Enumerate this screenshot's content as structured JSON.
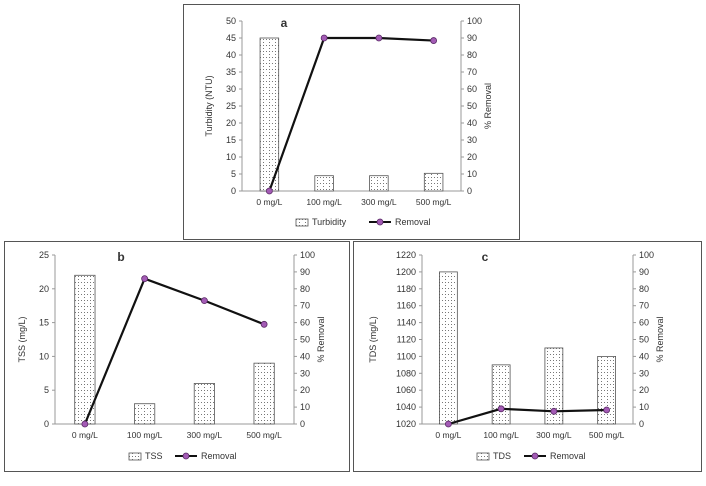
{
  "chart_data": [
    {
      "type": "bar",
      "panel_label": "a",
      "categories": [
        "0 mg/L",
        "100 mg/L",
        "300 mg/L",
        "500 mg/L"
      ],
      "series": [
        {
          "name": "Turbidity",
          "type": "bar",
          "axis": "left",
          "values": [
            45,
            4.5,
            4.5,
            5.2
          ]
        },
        {
          "name": "Removal",
          "type": "line",
          "axis": "right",
          "values": [
            0,
            90,
            90,
            88.5
          ]
        }
      ],
      "ylabel": "Turbidity (NTU)",
      "y2label": "% Removal",
      "ylim": [
        0,
        50
      ],
      "yticks": [
        0,
        5,
        10,
        15,
        20,
        25,
        30,
        35,
        40,
        45,
        50
      ],
      "y2lim": [
        0,
        100
      ],
      "y2ticks": [
        0,
        10,
        20,
        30,
        40,
        50,
        60,
        70,
        80,
        90,
        100
      ],
      "legend": "bottom",
      "grid": false,
      "colors": {
        "bar_fill": "#ffffff",
        "bar_stroke": "#555555",
        "line": "#111111",
        "marker": "#a35bb5"
      }
    },
    {
      "type": "bar",
      "panel_label": "b",
      "categories": [
        "0 mg/L",
        "100 mg/L",
        "300 mg/L",
        "500 mg/L"
      ],
      "series": [
        {
          "name": "TSS",
          "type": "bar",
          "axis": "left",
          "values": [
            22,
            3,
            6,
            9
          ]
        },
        {
          "name": "Removal",
          "type": "line",
          "axis": "right",
          "values": [
            0,
            86,
            73,
            59
          ]
        }
      ],
      "ylabel": "TSS (mg/L)",
      "y2label": "% Removal",
      "ylim": [
        0,
        25
      ],
      "yticks": [
        0,
        5,
        10,
        15,
        20,
        25
      ],
      "y2lim": [
        0,
        100
      ],
      "y2ticks": [
        0,
        10,
        20,
        30,
        40,
        50,
        60,
        70,
        80,
        90,
        100
      ],
      "legend": "bottom",
      "grid": false,
      "colors": {
        "bar_fill": "#ffffff",
        "bar_stroke": "#555555",
        "line": "#111111",
        "marker": "#a35bb5"
      }
    },
    {
      "type": "bar",
      "panel_label": "c",
      "categories": [
        "0 mg/L",
        "100 mg/L",
        "300 mg/L",
        "500 mg/L"
      ],
      "series": [
        {
          "name": "TDS",
          "type": "bar",
          "axis": "left",
          "values": [
            1200,
            1090,
            1110,
            1100
          ]
        },
        {
          "name": "Removal",
          "type": "line",
          "axis": "right",
          "values": [
            0,
            9,
            7.5,
            8.3
          ]
        }
      ],
      "ylabel": "TDS (mg/L)",
      "y2label": "% Removal",
      "ylim": [
        1020,
        1220
      ],
      "yticks": [
        1020,
        1040,
        1060,
        1080,
        1100,
        1120,
        1140,
        1160,
        1180,
        1200,
        1220
      ],
      "y2lim": [
        0,
        100
      ],
      "y2ticks": [
        0,
        10,
        20,
        30,
        40,
        50,
        60,
        70,
        80,
        90,
        100
      ],
      "legend": "bottom",
      "grid": false,
      "colors": {
        "bar_fill": "#ffffff",
        "bar_stroke": "#555555",
        "line": "#111111",
        "marker": "#a35bb5"
      }
    }
  ]
}
